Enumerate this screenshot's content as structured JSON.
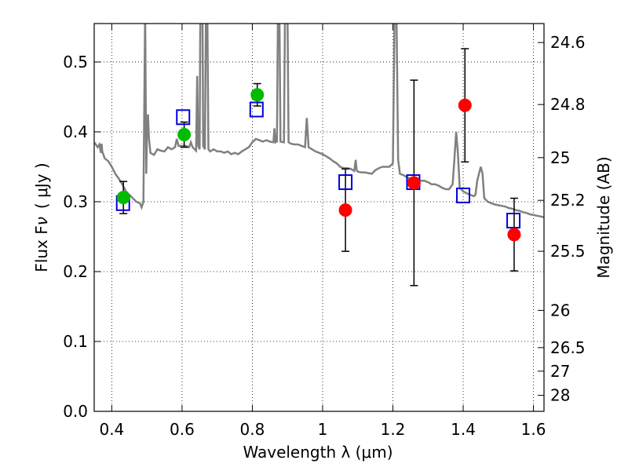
{
  "chart_data": {
    "type": "scatter",
    "xlabel": "Wavelength  λ (μm)",
    "ylabel": "Flux  F",
    "ylabel_subscript": "ν",
    "ylabel_units": "( μJy )",
    "ylabel_right": "Magnitude (AB)",
    "xlim": [
      0.35,
      1.63
    ],
    "ylim": [
      0.0,
      0.555
    ],
    "x_ticks": [
      0.4,
      0.6,
      0.8,
      1.0,
      1.2,
      1.4,
      1.6
    ],
    "x_tick_labels": [
      "0.4",
      "0.6",
      "0.8",
      "1",
      "1.2",
      "1.4",
      "1.6"
    ],
    "y_ticks": [
      0.0,
      0.1,
      0.2,
      0.3,
      0.4,
      0.5
    ],
    "y_tick_labels": [
      "0.0",
      "0.1",
      "0.2",
      "0.3",
      "0.4",
      "0.5"
    ],
    "magnitude_ticks": [
      {
        "label": "24.6",
        "flux": 0.5278
      },
      {
        "label": "24.8",
        "flux": 0.4391
      },
      {
        "label": "25",
        "flux": 0.3631
      },
      {
        "label": "25.2",
        "flux": 0.302
      },
      {
        "label": "25.5",
        "flux": 0.2291
      },
      {
        "label": "26",
        "flux": 0.1445
      },
      {
        "label": "26.5",
        "flux": 0.0912
      },
      {
        "label": "27",
        "flux": 0.0575
      },
      {
        "label": "28",
        "flux": 0.0229
      }
    ],
    "grid": true,
    "series": [
      {
        "name": "model SED spectrum",
        "kind": "line",
        "color": "#808080",
        "points": [
          [
            0.35,
            0.385
          ],
          [
            0.36,
            0.378
          ],
          [
            0.362,
            0.38
          ],
          [
            0.365,
            0.382
          ],
          [
            0.369,
            0.37
          ],
          [
            0.371,
            0.383
          ],
          [
            0.373,
            0.372
          ],
          [
            0.38,
            0.362
          ],
          [
            0.39,
            0.358
          ],
          [
            0.4,
            0.35
          ],
          [
            0.41,
            0.34
          ],
          [
            0.42,
            0.333
          ],
          [
            0.43,
            0.325
          ],
          [
            0.44,
            0.315
          ],
          [
            0.45,
            0.31
          ],
          [
            0.46,
            0.305
          ],
          [
            0.47,
            0.3
          ],
          [
            0.48,
            0.298
          ],
          [
            0.485,
            0.292
          ],
          [
            0.49,
            0.3
          ],
          [
            0.495,
            0.575
          ],
          [
            0.498,
            0.34
          ],
          [
            0.5,
            0.39
          ],
          [
            0.503,
            0.425
          ],
          [
            0.506,
            0.39
          ],
          [
            0.51,
            0.37
          ],
          [
            0.52,
            0.367
          ],
          [
            0.53,
            0.375
          ],
          [
            0.54,
            0.373
          ],
          [
            0.55,
            0.372
          ],
          [
            0.56,
            0.378
          ],
          [
            0.57,
            0.375
          ],
          [
            0.58,
            0.378
          ],
          [
            0.585,
            0.39
          ],
          [
            0.59,
            0.38
          ],
          [
            0.6,
            0.38
          ],
          [
            0.61,
            0.38
          ],
          [
            0.62,
            0.378
          ],
          [
            0.625,
            0.385
          ],
          [
            0.63,
            0.378
          ],
          [
            0.64,
            0.373
          ],
          [
            0.643,
            0.48
          ],
          [
            0.646,
            0.38
          ],
          [
            0.65,
            0.375
          ],
          [
            0.652,
            0.575
          ],
          [
            0.655,
            0.6
          ],
          [
            0.658,
            0.575
          ],
          [
            0.66,
            0.38
          ],
          [
            0.665,
            0.375
          ],
          [
            0.668,
            0.575
          ],
          [
            0.672,
            0.575
          ],
          [
            0.675,
            0.375
          ],
          [
            0.68,
            0.372
          ],
          [
            0.69,
            0.375
          ],
          [
            0.7,
            0.372
          ],
          [
            0.71,
            0.372
          ],
          [
            0.72,
            0.37
          ],
          [
            0.73,
            0.372
          ],
          [
            0.74,
            0.368
          ],
          [
            0.75,
            0.37
          ],
          [
            0.76,
            0.368
          ],
          [
            0.77,
            0.372
          ],
          [
            0.78,
            0.375
          ],
          [
            0.79,
            0.378
          ],
          [
            0.8,
            0.385
          ],
          [
            0.81,
            0.39
          ],
          [
            0.82,
            0.388
          ],
          [
            0.83,
            0.386
          ],
          [
            0.84,
            0.388
          ],
          [
            0.85,
            0.386
          ],
          [
            0.86,
            0.385
          ],
          [
            0.863,
            0.405
          ],
          [
            0.866,
            0.385
          ],
          [
            0.87,
            0.386
          ],
          [
            0.873,
            0.575
          ],
          [
            0.877,
            0.575
          ],
          [
            0.88,
            0.386
          ],
          [
            0.89,
            0.385
          ],
          [
            0.893,
            0.575
          ],
          [
            0.9,
            0.575
          ],
          [
            0.903,
            0.385
          ],
          [
            0.91,
            0.383
          ],
          [
            0.92,
            0.382
          ],
          [
            0.93,
            0.382
          ],
          [
            0.94,
            0.38
          ],
          [
            0.95,
            0.378
          ],
          [
            0.955,
            0.42
          ],
          [
            0.96,
            0.378
          ],
          [
            0.97,
            0.375
          ],
          [
            0.98,
            0.372
          ],
          [
            0.99,
            0.37
          ],
          [
            1.0,
            0.368
          ],
          [
            1.01,
            0.365
          ],
          [
            1.02,
            0.362
          ],
          [
            1.03,
            0.358
          ],
          [
            1.04,
            0.355
          ],
          [
            1.05,
            0.35
          ],
          [
            1.06,
            0.348
          ],
          [
            1.07,
            0.348
          ],
          [
            1.08,
            0.347
          ],
          [
            1.09,
            0.344
          ],
          [
            1.094,
            0.36
          ],
          [
            1.097,
            0.345
          ],
          [
            1.1,
            0.343
          ],
          [
            1.11,
            0.342
          ],
          [
            1.12,
            0.342
          ],
          [
            1.13,
            0.341
          ],
          [
            1.14,
            0.34
          ],
          [
            1.15,
            0.345
          ],
          [
            1.16,
            0.348
          ],
          [
            1.17,
            0.35
          ],
          [
            1.18,
            0.35
          ],
          [
            1.19,
            0.35
          ],
          [
            1.2,
            0.355
          ],
          [
            1.205,
            0.575
          ],
          [
            1.21,
            0.575
          ],
          [
            1.215,
            0.36
          ],
          [
            1.22,
            0.34
          ],
          [
            1.23,
            0.338
          ],
          [
            1.24,
            0.335
          ],
          [
            1.25,
            0.333
          ],
          [
            1.26,
            0.335
          ],
          [
            1.27,
            0.332
          ],
          [
            1.28,
            0.33
          ],
          [
            1.29,
            0.33
          ],
          [
            1.3,
            0.328
          ],
          [
            1.31,
            0.325
          ],
          [
            1.32,
            0.325
          ],
          [
            1.33,
            0.323
          ],
          [
            1.34,
            0.32
          ],
          [
            1.35,
            0.318
          ],
          [
            1.36,
            0.318
          ],
          [
            1.37,
            0.325
          ],
          [
            1.375,
            0.36
          ],
          [
            1.38,
            0.4
          ],
          [
            1.385,
            0.37
          ],
          [
            1.39,
            0.32
          ],
          [
            1.4,
            0.315
          ],
          [
            1.41,
            0.312
          ],
          [
            1.42,
            0.31
          ],
          [
            1.43,
            0.308
          ],
          [
            1.435,
            0.31
          ],
          [
            1.44,
            0.33
          ],
          [
            1.45,
            0.35
          ],
          [
            1.455,
            0.34
          ],
          [
            1.46,
            0.305
          ],
          [
            1.47,
            0.3
          ],
          [
            1.48,
            0.298
          ],
          [
            1.49,
            0.296
          ],
          [
            1.5,
            0.295
          ],
          [
            1.51,
            0.294
          ],
          [
            1.52,
            0.293
          ],
          [
            1.53,
            0.291
          ],
          [
            1.54,
            0.29
          ],
          [
            1.55,
            0.288
          ],
          [
            1.56,
            0.287
          ],
          [
            1.57,
            0.285
          ],
          [
            1.58,
            0.284
          ],
          [
            1.59,
            0.282
          ],
          [
            1.6,
            0.281
          ],
          [
            1.61,
            0.28
          ],
          [
            1.62,
            0.279
          ],
          [
            1.63,
            0.278
          ]
        ]
      },
      {
        "name": "green observed points",
        "kind": "points",
        "color": "#00bb00",
        "points": [
          {
            "x": 0.433,
            "y": 0.306,
            "err": 0.023
          },
          {
            "x": 0.606,
            "y": 0.396,
            "err": 0.018
          },
          {
            "x": 0.814,
            "y": 0.453,
            "err": 0.016
          }
        ]
      },
      {
        "name": "red observed points",
        "kind": "points",
        "color": "#ff0000",
        "points": [
          {
            "x": 1.065,
            "y": 0.288,
            "err_low": 0.059,
            "err_high": 0.059
          },
          {
            "x": 1.26,
            "y": 0.327,
            "err_low": 0.147,
            "err_high": 0.147
          },
          {
            "x": 1.405,
            "y": 0.438,
            "err_low": 0.081,
            "err_high": 0.081
          },
          {
            "x": 1.545,
            "y": 0.253,
            "err_low": 0.052,
            "err_high": 0.052
          }
        ]
      },
      {
        "name": "model photometry",
        "kind": "squares",
        "color": "#0000dd",
        "points": [
          {
            "x": 0.432,
            "y": 0.298
          },
          {
            "x": 0.603,
            "y": 0.421
          },
          {
            "x": 0.812,
            "y": 0.432
          },
          {
            "x": 1.065,
            "y": 0.328
          },
          {
            "x": 1.258,
            "y": 0.328
          },
          {
            "x": 1.4,
            "y": 0.309
          },
          {
            "x": 1.543,
            "y": 0.273
          }
        ]
      }
    ]
  }
}
